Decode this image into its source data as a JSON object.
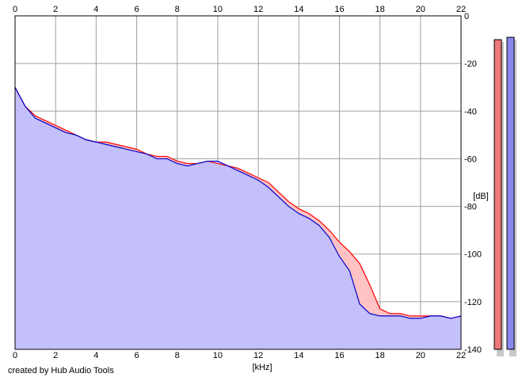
{
  "footer_text": "created by Hub Audio Tools",
  "chart_data": {
    "type": "area",
    "xlabel": "[kHz]",
    "ylabel": "[dB]",
    "xlim": [
      0,
      22
    ],
    "ylim": [
      -140,
      0
    ],
    "x_ticks": [
      0,
      2,
      4,
      6,
      8,
      10,
      12,
      14,
      16,
      18,
      20,
      22
    ],
    "x_tick_labels": [
      "0",
      "2",
      "4",
      "6",
      "8",
      "10",
      "12",
      "14",
      "16",
      "18",
      "20",
      "22"
    ],
    "y_ticks": [
      0,
      -20,
      -40,
      -60,
      -80,
      -100,
      -120,
      -140
    ],
    "y_tick_labels": [
      "0",
      "-20",
      "-40",
      "-60",
      "-80",
      "-100",
      "-120",
      "-140"
    ],
    "grid": true,
    "colors": {
      "series_left_line": "#ff0000",
      "series_left_fill": "#ffc0c0",
      "series_right_line": "#0000cc",
      "series_right_fill": "#c0c0ff",
      "grid": "#a0a0a0"
    },
    "series": [
      {
        "x": [
          0,
          0.5,
          1,
          1.5,
          2,
          2.5,
          3,
          3.5,
          4,
          4.5,
          5,
          5.5,
          6,
          6.5,
          7,
          7.5,
          8,
          8.5,
          9,
          9.5,
          10,
          10.5,
          11,
          11.5,
          12,
          12.5,
          13,
          13.5,
          14,
          14.5,
          15,
          15.5,
          16,
          16.5,
          17,
          17.5,
          18,
          18.5,
          19,
          19.5,
          20,
          20.5,
          21,
          21.5,
          22
        ],
        "values": [
          -30,
          -38,
          -42,
          -44,
          -46,
          -48,
          -50,
          -52,
          -53,
          -53,
          -54,
          -55,
          -56,
          -58,
          -59,
          -59,
          -61,
          -62,
          -62,
          -61,
          -62,
          -63,
          -64,
          -66,
          -68,
          -70,
          -74,
          -78,
          -81,
          -83,
          -86,
          -90,
          -95,
          -99,
          -104,
          -113,
          -123,
          -125,
          -125,
          -126,
          -126,
          -126,
          -126,
          -127,
          -126
        ]
      },
      {
        "x": [
          0,
          0.5,
          1,
          1.5,
          2,
          2.5,
          3,
          3.5,
          4,
          4.5,
          5,
          5.5,
          6,
          6.5,
          7,
          7.5,
          8,
          8.5,
          9,
          9.5,
          10,
          10.5,
          11,
          11.5,
          12,
          12.5,
          13,
          13.5,
          14,
          14.5,
          15,
          15.5,
          16,
          16.5,
          17,
          17.5,
          18,
          18.5,
          19,
          19.5,
          20,
          20.5,
          21,
          21.5,
          22
        ],
        "values": [
          -30,
          -38,
          -43,
          -45,
          -47,
          -49,
          -50,
          -52,
          -53,
          -54,
          -55,
          -56,
          -57,
          -58,
          -60,
          -60,
          -62,
          -63,
          -62,
          -61,
          -61,
          -63,
          -65,
          -67,
          -69,
          -72,
          -76,
          -80,
          -83,
          -85,
          -88,
          -93,
          -101,
          -107,
          -121,
          -125,
          -126,
          -126,
          -126,
          -127,
          -127,
          -126,
          -126,
          -127,
          -126
        ]
      }
    ],
    "level_meters": [
      {
        "value_db": -10
      },
      {
        "value_db": -9
      }
    ]
  }
}
